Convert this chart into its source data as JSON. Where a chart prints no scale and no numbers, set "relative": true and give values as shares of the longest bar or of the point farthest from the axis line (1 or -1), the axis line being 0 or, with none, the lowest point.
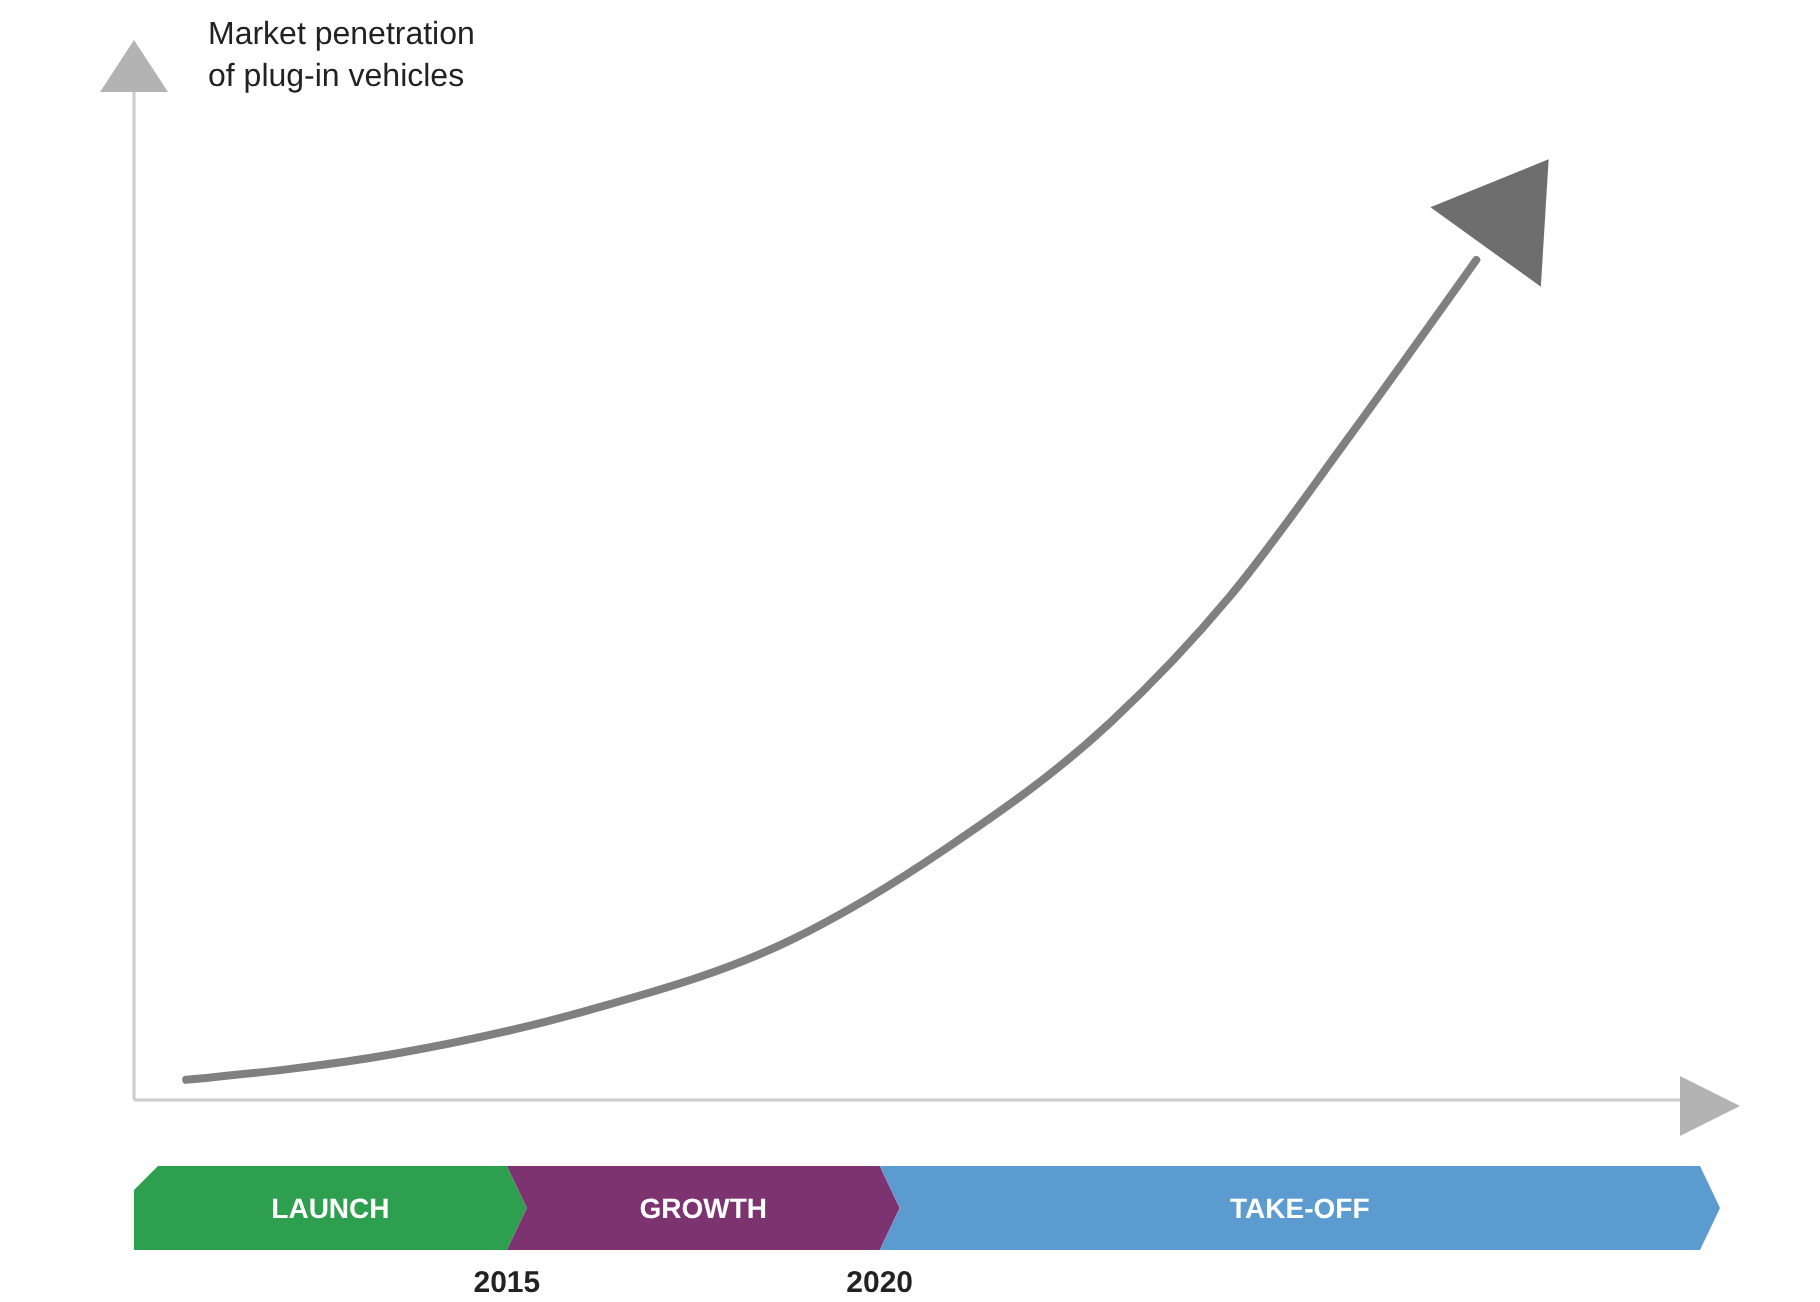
{
  "chart_data": {
    "type": "line",
    "relative": true,
    "xlim": [
      2010,
      2031
    ],
    "xticks": [
      2015,
      2020
    ],
    "series": [
      {
        "color": "#808080",
        "x": [
          2010.7,
          2013.5,
          2016.1,
          2018.8,
          2020.9,
          2023.1,
          2024.7,
          2026.3,
          2028.0
        ],
        "values": [
          0.024,
          0.055,
          0.107,
          0.19,
          0.3,
          0.45,
          0.6,
          0.79,
          1.0
        ]
      }
    ],
    "annotations": [
      "Market penetration of plug-in vehicles",
      "LAUNCH",
      "GROWTH",
      "TAKE-OFF"
    ],
    "marker": "none",
    "line_style": "solid",
    "grid": false
  }
}
